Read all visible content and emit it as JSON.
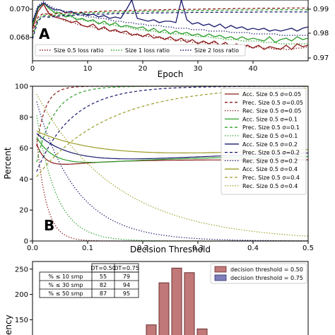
{
  "chart_data": [
    {
      "panel_label": "A",
      "type": "line",
      "xlabel": "Epoch",
      "x_ticks": [
        "0",
        "10",
        "20",
        "30",
        "40"
      ],
      "y_ticks": [
        "0.068",
        "0.070"
      ],
      "y2_ticks": [
        "0.99",
        "0.98",
        "0.97"
      ],
      "xlim": [
        0,
        50
      ],
      "ylim": [
        0.0669,
        0.0712
      ],
      "y2lim": [
        0.97,
        0.995
      ],
      "legend_position": "bottom",
      "series": [
        {
          "name": "Size 0.5 loss ratio",
          "color": "#8b1a1a",
          "dash": "dotted",
          "axis": "left",
          "values": [
            0.069,
            0.0706,
            0.0709,
            0.0703,
            0.0701,
            0.0699,
            0.0697,
            0.0697,
            0.0695,
            0.0694,
            0.0693,
            0.0693,
            0.0691,
            0.0692,
            0.069,
            0.069,
            0.0689,
            0.0688,
            0.0688,
            0.0687,
            0.0687,
            0.0686,
            0.0687,
            0.0685,
            0.0685,
            0.0684,
            0.0684,
            0.0683,
            0.0684,
            0.0682,
            0.0682,
            0.0682,
            0.0681,
            0.0682,
            0.068,
            0.0681,
            0.068,
            0.0679,
            0.068,
            0.0679,
            0.0678,
            0.0679,
            0.0678,
            0.0678,
            0.0677,
            0.0678,
            0.0677,
            0.0677,
            0.0678,
            0.0678,
            0.0679
          ]
        },
        {
          "name": "Size 1 loss ratio",
          "color": "#2ca02c",
          "dash": "dotted",
          "axis": "left",
          "values": [
            0.0695,
            0.0707,
            0.071,
            0.0706,
            0.0704,
            0.0703,
            0.0701,
            0.07,
            0.0699,
            0.0698,
            0.0697,
            0.0697,
            0.0696,
            0.0695,
            0.0695,
            0.0694,
            0.0693,
            0.0693,
            0.0692,
            0.0691,
            0.0691,
            0.069,
            0.069,
            0.0689,
            0.0689,
            0.0688,
            0.0688,
            0.0688,
            0.0687,
            0.0687,
            0.0686,
            0.0686,
            0.0686,
            0.0685,
            0.0685,
            0.0684,
            0.0684,
            0.0684,
            0.0683,
            0.0683,
            0.0683,
            0.0683,
            0.0682,
            0.0682,
            0.0682,
            0.0681,
            0.0681,
            0.0681,
            0.0681,
            0.0681,
            0.0681
          ]
        },
        {
          "name": "Size 2 loss ratio",
          "color": "#1a1a6e",
          "dash": "dotted",
          "axis": "left",
          "values": [
            0.0697,
            0.0708,
            0.0711,
            0.0708,
            0.0706,
            0.0705,
            0.0704,
            0.0703,
            0.0702,
            0.0701,
            0.07,
            0.07,
            0.0699,
            0.0699,
            0.0698,
            0.0697,
            0.0697,
            0.0696,
            0.0696,
            0.0695,
            0.0695,
            0.0694,
            0.0694,
            0.0694,
            0.0693,
            0.0693,
            0.0692,
            0.0692,
            0.0692,
            0.0691,
            0.0691,
            0.0691,
            0.069,
            0.069,
            0.069,
            0.069,
            0.0689,
            0.0689,
            0.0689,
            0.0689,
            0.0688,
            0.0688,
            0.0688,
            0.0688,
            0.0688,
            0.0687,
            0.0687,
            0.0687,
            0.0687,
            0.0687,
            0.0687
          ]
        },
        {
          "name": "",
          "color": "#8b1a1a",
          "dash": "solid",
          "axis": "left",
          "values": [
            0.0692,
            0.0704,
            0.0709,
            0.0702,
            0.07,
            0.0699,
            0.0698,
            0.0696,
            0.0697,
            0.0694,
            0.0693,
            0.0695,
            0.0691,
            0.0693,
            0.069,
            0.0691,
            0.0689,
            0.069,
            0.0687,
            0.0688,
            0.0686,
            0.0688,
            0.0685,
            0.0686,
            0.0684,
            0.0686,
            0.0683,
            0.0685,
            0.0682,
            0.0684,
            0.0681,
            0.0683,
            0.0681,
            0.0683,
            0.068,
            0.0682,
            0.0679,
            0.0681,
            0.0679,
            0.068,
            0.0678,
            0.068,
            0.0677,
            0.0679,
            0.0678,
            0.0677,
            0.068,
            0.0677,
            0.0681,
            0.0679,
            0.068
          ]
        },
        {
          "name": "",
          "color": "#2ca02c",
          "dash": "solid",
          "axis": "left",
          "values": [
            0.0694,
            0.0706,
            0.071,
            0.0706,
            0.0703,
            0.0703,
            0.07,
            0.0701,
            0.0698,
            0.0699,
            0.0697,
            0.0698,
            0.0695,
            0.0697,
            0.0694,
            0.0696,
            0.0693,
            0.0694,
            0.0693,
            0.0692,
            0.0693,
            0.069,
            0.0692,
            0.0689,
            0.0691,
            0.0688,
            0.069,
            0.0688,
            0.0689,
            0.0687,
            0.0688,
            0.0686,
            0.0688,
            0.0686,
            0.0687,
            0.0685,
            0.0686,
            0.0684,
            0.0686,
            0.0684,
            0.0685,
            0.0684,
            0.0683,
            0.0686,
            0.0682,
            0.0684,
            0.0685,
            0.0683,
            0.0686,
            0.0684,
            0.0685
          ]
        },
        {
          "name": "",
          "color": "#1a1a6e",
          "dash": "solid",
          "axis": "left",
          "values": [
            0.0696,
            0.0707,
            0.071,
            0.0707,
            0.0705,
            0.0705,
            0.0703,
            0.0704,
            0.0702,
            0.0703,
            0.0701,
            0.0702,
            0.07,
            0.0701,
            0.0699,
            0.07,
            0.0699,
            0.0705,
            0.0712,
            0.0699,
            0.0698,
            0.0697,
            0.0698,
            0.0696,
            0.0697,
            0.0697,
            0.0696,
            0.0712,
            0.0698,
            0.0695,
            0.0696,
            0.0694,
            0.0695,
            0.0693,
            0.0695,
            0.0692,
            0.0694,
            0.0692,
            0.0693,
            0.0691,
            0.0692,
            0.0691,
            0.0692,
            0.069,
            0.0691,
            0.069,
            0.0691,
            0.0692,
            0.069,
            0.0692,
            0.0693
          ]
        },
        {
          "name": "",
          "color": "#8b1a1a",
          "dash": "dashed",
          "axis": "right",
          "values": [
            0.9815,
            0.988,
            0.9895,
            0.989,
            0.9893,
            0.9895,
            0.9897,
            0.9898,
            0.9899,
            0.99,
            0.9901,
            0.9902,
            0.9903,
            0.9904,
            0.9905,
            0.9906,
            0.9906,
            0.9907,
            0.9907,
            0.9908,
            0.9908,
            0.9909,
            0.9909,
            0.991,
            0.991,
            0.9911,
            0.9911,
            0.9911,
            0.9912,
            0.9912,
            0.9912,
            0.9913,
            0.9913,
            0.9913,
            0.9914,
            0.9914,
            0.9914,
            0.9915,
            0.9915,
            0.9915,
            0.9915,
            0.9916,
            0.9916,
            0.9916,
            0.9916,
            0.9916,
            0.9917,
            0.9917,
            0.9917,
            0.9917,
            0.9917
          ]
        },
        {
          "name": "",
          "color": "#2ca02c",
          "dash": "dashed",
          "axis": "right",
          "values": [
            0.98,
            0.9872,
            0.9888,
            0.9884,
            0.9887,
            0.9889,
            0.9891,
            0.9893,
            0.9894,
            0.9895,
            0.9896,
            0.9897,
            0.9898,
            0.9899,
            0.9899,
            0.99,
            0.9901,
            0.9901,
            0.9902,
            0.9902,
            0.9903,
            0.9903,
            0.9904,
            0.9904,
            0.9905,
            0.9905,
            0.9905,
            0.9906,
            0.9906,
            0.9906,
            0.9907,
            0.9907,
            0.9907,
            0.9907,
            0.9908,
            0.9908,
            0.9908,
            0.9908,
            0.9909,
            0.9909,
            0.9909,
            0.9909,
            0.9909,
            0.991,
            0.991,
            0.991,
            0.991,
            0.991,
            0.991,
            0.991,
            0.991
          ]
        },
        {
          "name": "",
          "color": "#1a1a6e",
          "dash": "dashed",
          "axis": "right",
          "values": [
            0.979,
            0.9865,
            0.9882,
            0.9879,
            0.9882,
            0.9884,
            0.9886,
            0.9887,
            0.9888,
            0.9889,
            0.989,
            0.9891,
            0.9892,
            0.9892,
            0.9893,
            0.9894,
            0.9894,
            0.9895,
            0.9895,
            0.9896,
            0.9896,
            0.9896,
            0.9897,
            0.9897,
            0.9897,
            0.9898,
            0.9898,
            0.9898,
            0.9898,
            0.9899,
            0.9899,
            0.9899,
            0.9899,
            0.9899,
            0.99,
            0.99,
            0.99,
            0.99,
            0.99,
            0.99,
            0.99,
            0.9901,
            0.9901,
            0.9901,
            0.9901,
            0.9901,
            0.9901,
            0.9901,
            0.9901,
            0.9901,
            0.9901
          ]
        }
      ]
    },
    {
      "panel_label": "B",
      "type": "line",
      "xlabel": "Decision Threshold",
      "ylabel": "Percent",
      "xlim": [
        0,
        0.5
      ],
      "ylim": [
        0,
        100
      ],
      "x_ticks": [
        "0.0",
        "0.1",
        "0.2",
        "0.3",
        "0.4",
        "0.5"
      ],
      "y_ticks": [
        "0",
        "20",
        "40",
        "60",
        "80",
        "100"
      ],
      "legend_position": "right",
      "grid": false,
      "series": [
        {
          "name": "Acc. Size 0.5 σ=0.05",
          "color": "#8b1a1a",
          "dash": "solid",
          "sigma": 0.05,
          "metric": "acc"
        },
        {
          "name": "Prec. Size 0.5 σ=0.05",
          "color": "#8b1a1a",
          "dash": "dashed",
          "sigma": 0.05,
          "metric": "prec"
        },
        {
          "name": "Rec. Size 0.5 σ=0.05",
          "color": "#8b1a1a",
          "dash": "dotted",
          "sigma": 0.05,
          "metric": "rec"
        },
        {
          "name": "Acc. Size 0.5 σ=0.1",
          "color": "#2ca02c",
          "dash": "solid",
          "sigma": 0.1,
          "metric": "acc"
        },
        {
          "name": "Prec. Size 0.5 σ=0.1",
          "color": "#2ca02c",
          "dash": "dashed",
          "sigma": 0.1,
          "metric": "prec"
        },
        {
          "name": "Rec. Size 0.5 σ=0.1",
          "color": "#2ca02c",
          "dash": "dotted",
          "sigma": 0.1,
          "metric": "rec"
        },
        {
          "name": "Acc. Size 0.5 σ=0.2",
          "color": "#1a1a6e",
          "dash": "solid",
          "sigma": 0.2,
          "metric": "acc"
        },
        {
          "name": "Prec. Size 0.5 σ=0.2",
          "color": "#1a1a6e",
          "dash": "dashed",
          "sigma": 0.2,
          "metric": "prec"
        },
        {
          "name": "Rec. Size 0.5 σ=0.2",
          "color": "#1a1a6e",
          "dash": "dotted",
          "sigma": 0.2,
          "metric": "rec"
        },
        {
          "name": "Acc. Size 0.5 σ=0.4",
          "color": "#9b9b26",
          "dash": "solid",
          "sigma": 0.4,
          "metric": "acc"
        },
        {
          "name": "Prec. Size 0.5 σ=0.4",
          "color": "#9b9b26",
          "dash": "dashed",
          "sigma": 0.4,
          "metric": "prec"
        },
        {
          "name": "Rec. Size 0.5 σ=0.4",
          "color": "#9b9b26",
          "dash": "dotted",
          "sigma": 0.4,
          "metric": "rec"
        }
      ]
    },
    {
      "panel_label": "",
      "type": "bar",
      "ylabel": "ency",
      "y_ticks": [
        "150",
        "200",
        "250"
      ],
      "ylim": [
        120,
        265
      ],
      "legend_position": "top-right",
      "series": [
        {
          "name": "decision threshold =  0.50",
          "color": "#c07878",
          "edge": "#6b2e2e",
          "values": [
            140,
            223,
            252,
            243,
            132
          ]
        },
        {
          "name": "decision threshold =  0.75",
          "color": "#7e7eb8",
          "edge": "#2e2e6b",
          "values": []
        }
      ],
      "table": {
        "columns": [
          "",
          "DT=0.50",
          "DT=0.75"
        ],
        "rows": [
          [
            "% ≤ 10 smp",
            "55",
            "79"
          ],
          [
            "% ≤ 30 smp",
            "82",
            "94"
          ],
          [
            "% ≤ 50 smp",
            "87",
            "95"
          ]
        ]
      }
    }
  ]
}
